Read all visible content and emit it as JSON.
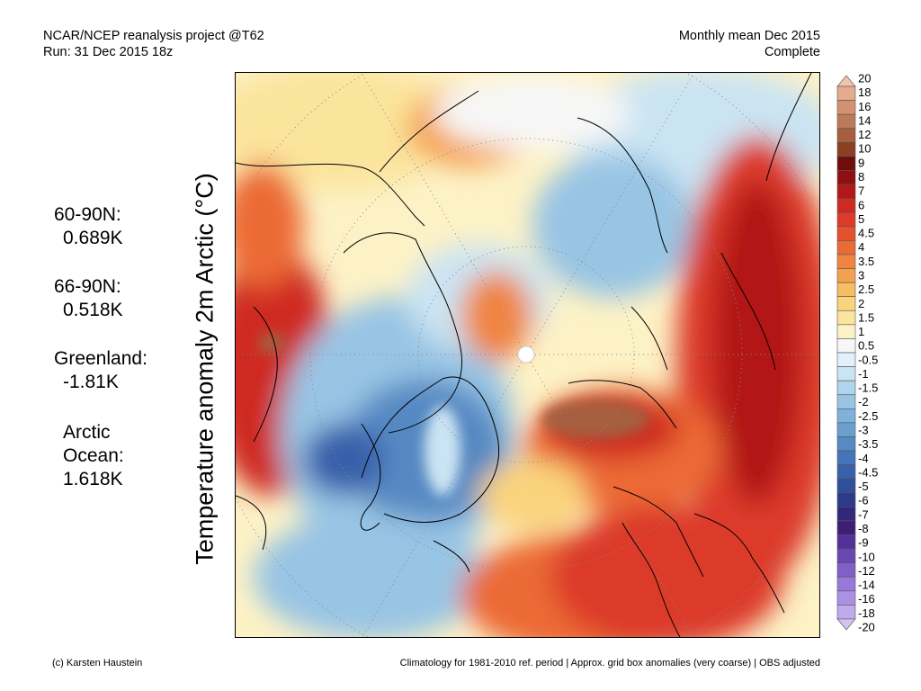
{
  "header": {
    "project": "NCAR/NCEP reanalysis project @T62",
    "run": "Run: 31 Dec 2015 18z",
    "period": "Monthly mean Dec 2015",
    "status": "Complete"
  },
  "title": "Temperature anomaly 2m Arctic (°C)",
  "stats": [
    {
      "label": "60-90N:",
      "value": "0.689K"
    },
    {
      "label": "66-90N:",
      "value": "0.518K"
    },
    {
      "label": "Greenland:",
      "value": "-1.81K"
    },
    {
      "label_line1": "Arctic",
      "label_line2": "Ocean:",
      "value": "1.618K"
    }
  ],
  "legend": {
    "levels": [
      "20",
      "18",
      "16",
      "14",
      "12",
      "10",
      "9",
      "8",
      "7",
      "6",
      "5",
      "4.5",
      "4",
      "3.5",
      "3",
      "2.5",
      "2",
      "1.5",
      "1",
      "0.5",
      "-0.5",
      "-1",
      "-1.5",
      "-2",
      "-2.5",
      "-3",
      "-3.5",
      "-4",
      "-4.5",
      "-5",
      "-6",
      "-7",
      "-8",
      "-9",
      "-10",
      "-12",
      "-14",
      "-16",
      "-18",
      "-20"
    ],
    "colors": [
      "#f0c4ae",
      "#e4ab8e",
      "#d29272",
      "#bc7a58",
      "#a65f3f",
      "#8a4022",
      "#6f0c0c",
      "#8e1010",
      "#b21818",
      "#cf2a22",
      "#dc3b2a",
      "#e5512f",
      "#ec6a36",
      "#f08542",
      "#f4a14f",
      "#f8bd62",
      "#fad37d",
      "#fbe49c",
      "#fdf2c6",
      "#f7f7f7",
      "#e2f0f9",
      "#cbe4f3",
      "#b1d5ec",
      "#98c5e4",
      "#7fb2da",
      "#6a9fcf",
      "#5789c3",
      "#4674b8",
      "#3861aa",
      "#2f4f9b",
      "#2d3a8a",
      "#31287d",
      "#3e1d75",
      "#55309a",
      "#6a48b4",
      "#7f60c8",
      "#9679d8",
      "#ab91e3",
      "#c0aaec",
      "#d2c2f2"
    ]
  },
  "footer": {
    "credit": "(c) Karsten Haustein",
    "note": "Climatology for 1981-2010 ref. period | Approx. grid box anomalies (very coarse) | OBS adjusted"
  }
}
